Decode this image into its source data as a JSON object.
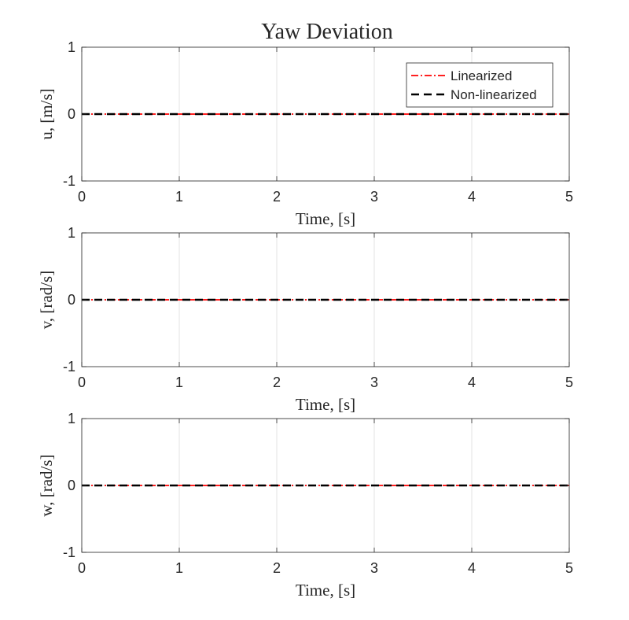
{
  "figure": {
    "title": "Yaw Deviation"
  },
  "chart_data": [
    {
      "type": "line",
      "title": "Yaw Deviation",
      "xlabel": "Time, [s]",
      "ylabel": "u, [m/s]",
      "xlim": [
        0,
        5
      ],
      "ylim": [
        -1,
        1
      ],
      "xticks": [
        0,
        1,
        2,
        3,
        4,
        5
      ],
      "yticks": [
        -1,
        0,
        1
      ],
      "grid": true,
      "legend": {
        "placement": "top-right"
      },
      "series": [
        {
          "name": "Linearized",
          "color": "#ff0000",
          "style": "dash-dot",
          "x": [
            0,
            5
          ],
          "y": [
            0,
            0
          ]
        },
        {
          "name": "Non-linearized",
          "color": "#000000",
          "style": "dashed",
          "x": [
            0,
            5
          ],
          "y": [
            0,
            0
          ]
        }
      ]
    },
    {
      "type": "line",
      "title": "",
      "xlabel": "Time, [s]",
      "ylabel": "v, [rad/s]",
      "xlim": [
        0,
        5
      ],
      "ylim": [
        -1,
        1
      ],
      "xticks": [
        0,
        1,
        2,
        3,
        4,
        5
      ],
      "yticks": [
        -1,
        0,
        1
      ],
      "grid": true,
      "series": [
        {
          "color": "#ff0000",
          "style": "dash-dot",
          "x": [
            0,
            5
          ],
          "y": [
            0,
            0
          ]
        },
        {
          "color": "#000000",
          "style": "dashed",
          "x": [
            0,
            5
          ],
          "y": [
            0,
            0
          ]
        }
      ]
    },
    {
      "type": "line",
      "title": "",
      "xlabel": "Time, [s]",
      "ylabel": "w, [rad/s]",
      "xlim": [
        0,
        5
      ],
      "ylim": [
        -1,
        1
      ],
      "xticks": [
        0,
        1,
        2,
        3,
        4,
        5
      ],
      "yticks": [
        -1,
        0,
        1
      ],
      "grid": true,
      "series": [
        {
          "color": "#ff0000",
          "style": "dash-dot",
          "x": [
            0,
            5
          ],
          "y": [
            0,
            0
          ]
        },
        {
          "color": "#000000",
          "style": "dashed",
          "x": [
            0,
            5
          ],
          "y": [
            0,
            0
          ]
        }
      ]
    }
  ]
}
